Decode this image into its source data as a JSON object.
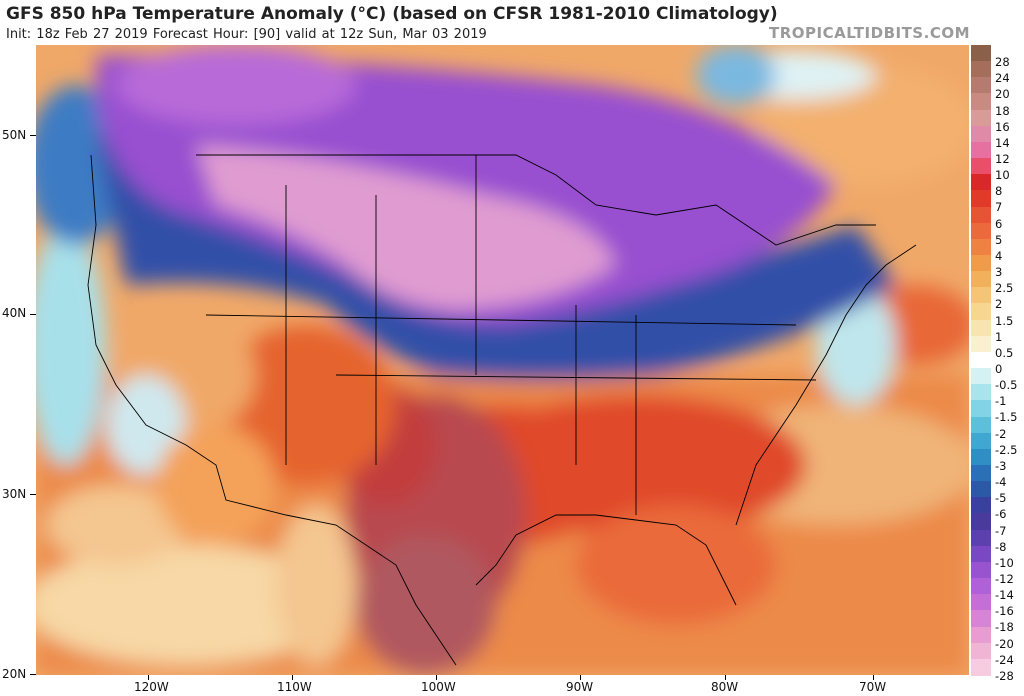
{
  "header": {
    "title": "GFS 850 hPa Temperature Anomaly (°C) (based on CFSR 1981-2010 Climatology)",
    "subtitle": "Init: 18z Feb 27 2019   Forecast Hour: [90]   valid at 12z Sun, Mar 03 2019",
    "credit": "TROPICALTIDBITS.COM"
  },
  "map": {
    "lat_labels": [
      "50N",
      "40N",
      "30N",
      "20N"
    ],
    "lon_labels": [
      "120W",
      "110W",
      "100W",
      "90W",
      "80W",
      "70W"
    ]
  },
  "colorbar": {
    "labels": [
      "28",
      "24",
      "20",
      "18",
      "16",
      "14",
      "12",
      "10",
      "8",
      "7",
      "6",
      "5",
      "4",
      "3",
      "2.5",
      "2",
      "1.5",
      "1",
      "0.5",
      "0",
      "-0.5",
      "-1",
      "-1.5",
      "-2",
      "-2.5",
      "-3",
      "-4",
      "-5",
      "-6",
      "-7",
      "-8",
      "-10",
      "-12",
      "-14",
      "-16",
      "-18",
      "-20",
      "-24",
      "-28"
    ],
    "colors": [
      "#8a6048",
      "#a46e5b",
      "#b77a6e",
      "#c98a82",
      "#d89b98",
      "#e08aa8",
      "#e870a0",
      "#e8506a",
      "#d82828",
      "#e03a28",
      "#e55433",
      "#ea6a3c",
      "#ee8240",
      "#f19a48",
      "#f3b05a",
      "#f5c474",
      "#f7d690",
      "#f8e4ae",
      "#faf0d0",
      "#ffffff",
      "#d4f2f4",
      "#a8e4ec",
      "#80d4e6",
      "#5cc0dc",
      "#3ea8d2",
      "#2f8ec6",
      "#2a70b8",
      "#2c58a8",
      "#3a40a0",
      "#4a3aa0",
      "#5c40b0",
      "#7a48c4",
      "#9854d0",
      "#b060d8",
      "#c66ed8",
      "#d884d6",
      "#e89cd2",
      "#f0b4d4",
      "#f8cce0"
    ]
  }
}
